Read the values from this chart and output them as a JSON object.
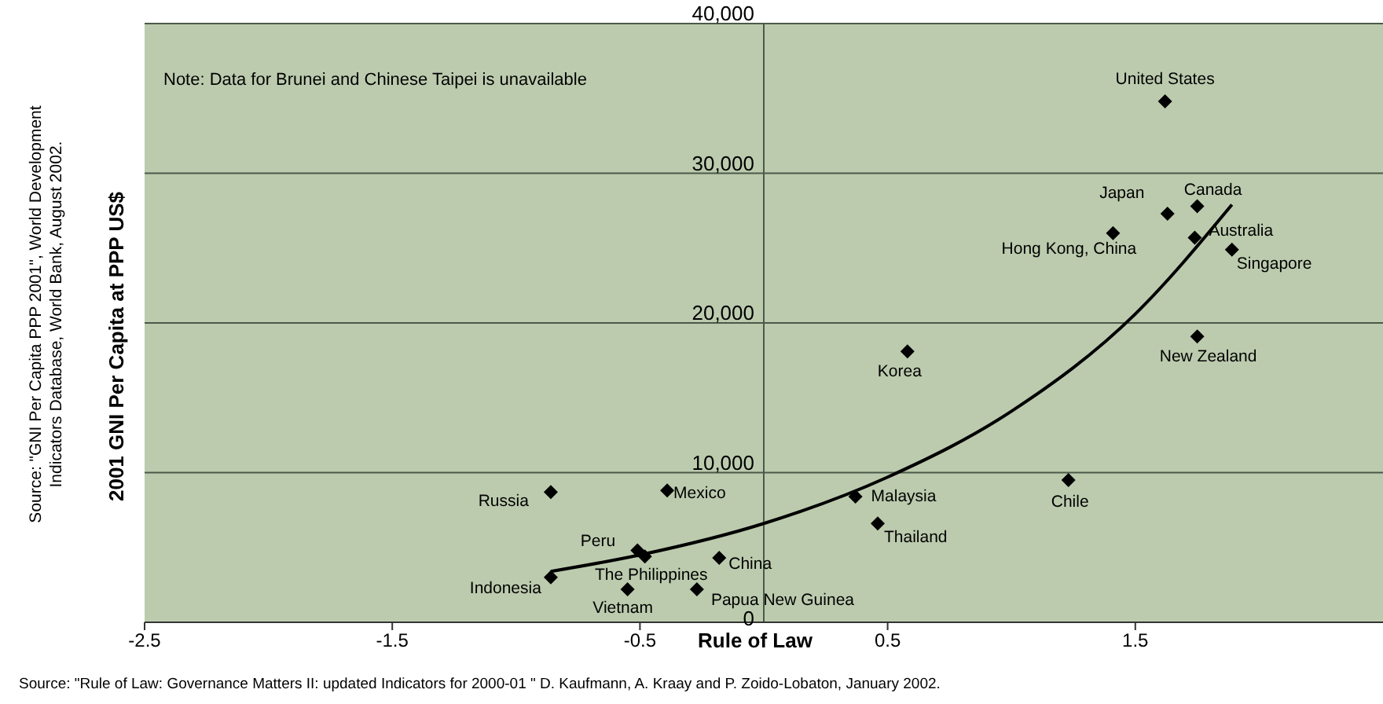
{
  "chart_data": {
    "type": "scatter",
    "xlabel": "Rule of Law",
    "ylabel": "2001 GNI Per Capita at PPP US$",
    "xlim": [
      -2.5,
      2.5
    ],
    "ylim": [
      0,
      40000
    ],
    "xticks": [
      -2.5,
      -1.5,
      -0.5,
      0.5,
      1.5
    ],
    "yticks": [
      0,
      {
        "value": 10000,
        "label": "10,000"
      },
      {
        "value": 20000,
        "label": "20,000"
      },
      {
        "value": 30000,
        "label": "30,000"
      },
      {
        "value": 40000,
        "label": "40,000"
      }
    ],
    "grid": "y",
    "legend": false,
    "series": [
      {
        "color": "#000000",
        "marker": "diamond",
        "x": [
          1.62,
          1.63,
          1.75,
          1.74,
          1.89,
          1.41,
          1.75,
          0.58,
          1.23,
          0.37,
          0.46,
          -0.86,
          -0.39,
          -0.51,
          -0.48,
          -0.18,
          -0.86,
          -0.55,
          -0.27
        ],
        "values": [
          34800,
          27300,
          27800,
          25700,
          24900,
          26000,
          19100,
          18100,
          9500,
          8400,
          6600,
          8700,
          8800,
          4800,
          4400,
          4300,
          3000,
          2200,
          2200
        ]
      },
      {
        "type": "line",
        "color": "#000000",
        "marker": "none",
        "line_style": "solid",
        "x": [
          -0.86,
          -0.5,
          0,
          0.5,
          1,
          1.5,
          1.89
        ],
        "values": [
          3400,
          4500,
          6600,
          9700,
          14100,
          20600,
          27900
        ]
      }
    ],
    "annotations": [
      {
        "text": "United States",
        "x": 1.62,
        "y": 34800
      },
      {
        "text": "Japan",
        "x": 1.63,
        "y": 27300
      },
      {
        "text": "Canada",
        "x": 1.75,
        "y": 27800
      },
      {
        "text": "Australia",
        "x": 1.74,
        "y": 25700
      },
      {
        "text": "Singapore",
        "x": 1.89,
        "y": 24900
      },
      {
        "text": "Hong Kong, China",
        "x": 1.41,
        "y": 26000
      },
      {
        "text": "New Zealand",
        "x": 1.75,
        "y": 19100
      },
      {
        "text": "Korea",
        "x": 0.58,
        "y": 18100
      },
      {
        "text": "Chile",
        "x": 1.23,
        "y": 9500
      },
      {
        "text": "Malaysia",
        "x": 0.37,
        "y": 8400
      },
      {
        "text": "Thailand",
        "x": 0.46,
        "y": 6600
      },
      {
        "text": "Russia",
        "x": -0.86,
        "y": 8700
      },
      {
        "text": "Mexico",
        "x": -0.39,
        "y": 8800
      },
      {
        "text": "Peru",
        "x": -0.51,
        "y": 4800
      },
      {
        "text": "The Philippines",
        "x": -0.48,
        "y": 4400
      },
      {
        "text": "China",
        "x": -0.18,
        "y": 4300
      },
      {
        "text": "Indonesia",
        "x": -0.86,
        "y": 3000
      },
      {
        "text": "Vietnam",
        "x": -0.55,
        "y": 2200
      },
      {
        "text": "Papua New Guinea",
        "x": -0.27,
        "y": 2200
      },
      "Note:  Data for Brunei and Chinese Taipei is unavailable",
      "Source:  \"GNI Per Capita PPP 2001\", World Development Indicators Database, World Bank, August 2002.",
      "Source:  \"Rule of Law:  Governance Matters II: updated Indicators for 2000-01 \"   D. Kaufmann, A. Kraay and P. Zoido-Lobaton, January 2002."
    ]
  }
}
